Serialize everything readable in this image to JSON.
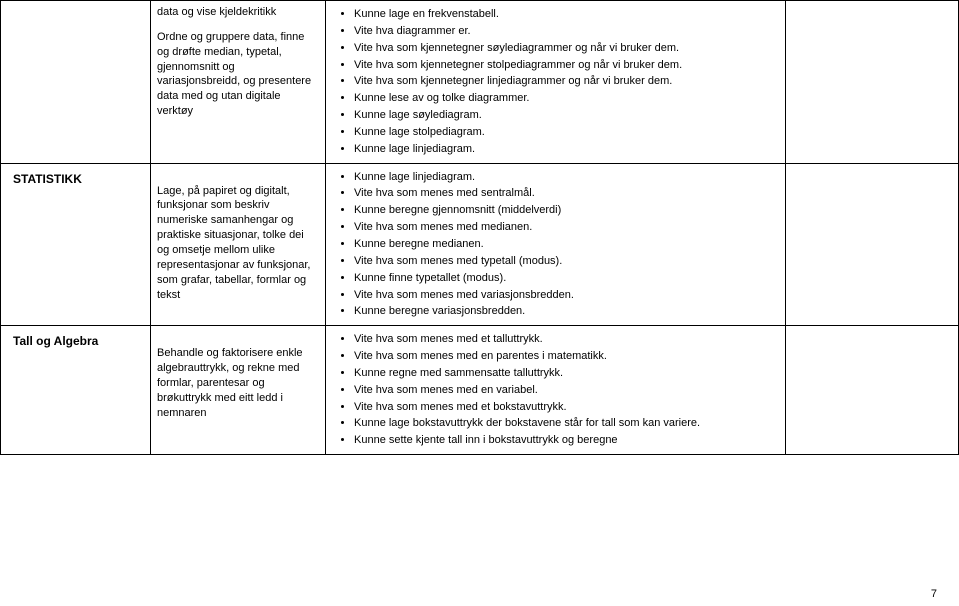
{
  "rows": [
    {
      "col1": "",
      "col2_paragraphs": [
        "data og vise kjeldekritikk",
        "Ordne og gruppere data, finne og drøfte median, typetal, gjennomsnitt og variasjonsbreidd, og presentere data med og utan digitale verktøy"
      ],
      "col3_items": [
        "Kunne lage en frekvenstabell.",
        "Vite hva diagrammer er.",
        "Vite hva som kjennetegner søylediagrammer og når vi bruker dem.",
        "Vite hva som kjennetegner stolpediagrammer og når vi bruker dem.",
        "Vite hva som kjennetegner linjediagrammer og når vi bruker dem.",
        "Kunne lese av og tolke diagrammer.",
        "Kunne lage søylediagram.",
        "Kunne lage stolpediagram.",
        "Kunne lage linjediagram."
      ]
    },
    {
      "col1": "STATISTIKK",
      "col2_paragraphs": [
        "Lage, på papiret og digitalt, funksjonar som beskriv numeriske samanhengar og praktiske situasjonar, tolke dei og omsetje mellom ulike representasjonar av funksjonar, som grafar, tabellar, formlar og tekst"
      ],
      "col2_pad_top": true,
      "col3_items": [
        "Kunne lage linjediagram.",
        "Vite hva som menes med sentralmål.",
        "Kunne beregne gjennomsnitt (middelverdi)",
        "Vite hva som menes med medianen.",
        "Kunne beregne medianen.",
        "Vite hva som menes med typetall (modus).",
        "Kunne finne typetallet (modus).",
        "Vite hva som menes med variasjonsbredden.",
        "Kunne beregne variasjonsbredden."
      ]
    },
    {
      "col1": "Tall og Algebra",
      "col2_paragraphs": [
        "Behandle og faktorisere enkle algebrauttrykk, og rekne med formlar, parentesar og brøkuttrykk med eitt ledd i nemnaren"
      ],
      "col2_pad_top": true,
      "col3_items": [
        "Vite hva som menes med et talluttrykk.",
        "Vite hva som menes med en parentes i matematikk.",
        "Kunne regne med sammensatte talluttrykk.",
        "Vite hva som menes med en variabel.",
        "Vite hva som menes med et bokstavuttrykk.",
        "Kunne lage bokstavuttrykk der bokstavene står for tall som kan variere.",
        "Kunne sette kjente tall inn i bokstavuttrykk og beregne"
      ]
    }
  ],
  "page_number": "7"
}
